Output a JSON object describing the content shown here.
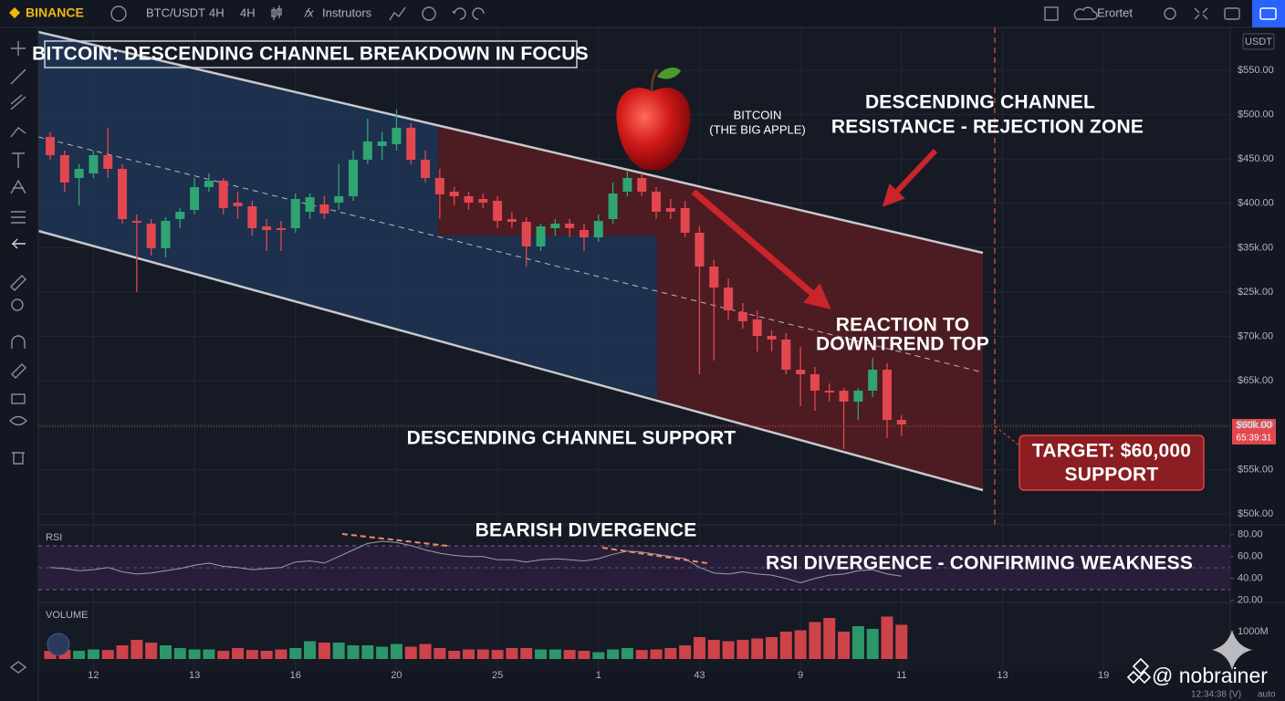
{
  "ui": {
    "logo": "BINANCE",
    "symbol": "BTC/USDT",
    "interval_1": "4H",
    "interval_2": "4H",
    "indicators": "Instrutors",
    "cloud": "Erortet",
    "currency": "USDT",
    "clock": "12:34:38 (V)",
    "scale_mode": "auto",
    "watermark": "@ nobrainer"
  },
  "chart_data": [
    {
      "type": "candlestick",
      "title": "BITCOIN: DESCENDING CHANNEL BREAKDOWN IN FOCUS",
      "annotations": {
        "apple": [
          "BITCOIN",
          "(THE BIG APPLE)"
        ],
        "resistance": [
          "DESCENDING CHANNEL",
          "RESISTANCE - REJECTION ZONE"
        ],
        "reaction": [
          "REACTION TO",
          "DOWNTREND TOP"
        ],
        "support": "DESCENDING CHANNEL SUPPORT",
        "target": [
          "TARGET: $60,000",
          "SUPPORT"
        ]
      },
      "price_labels": [
        "$550.00",
        "$500.00",
        "$450.00",
        "$400.00",
        "$35k.00",
        "$25k.00",
        "$70k.00",
        "$65k.00",
        "$60k.00",
        "$55k.00",
        "$50k.00"
      ],
      "last_price_label": "$60k.00",
      "countdown": "65:39:31",
      "x_labels": [
        "12",
        "13",
        "16",
        "20",
        "25",
        "1",
        "43",
        "9",
        "11",
        "13",
        "19"
      ],
      "ylim": [
        47,
        597
      ],
      "up_color": "#2fa572",
      "down_color": "#e2474f",
      "open": [
        477,
        457,
        432,
        437,
        457,
        442,
        385,
        382,
        355,
        387,
        397,
        422,
        429,
        405,
        401,
        379,
        377,
        377,
        395,
        403,
        405,
        412,
        452,
        467,
        469,
        487,
        452,
        432,
        417,
        412,
        409,
        407,
        387,
        384,
        357,
        377,
        382,
        375,
        367,
        387,
        417,
        432,
        417,
        399,
        399,
        372,
        335,
        312,
        285,
        277,
        259,
        255,
        222,
        217,
        199,
        199,
        187,
        199,
        222,
        167
      ],
      "high": [
        482,
        462,
        447,
        462,
        487,
        447,
        392,
        387,
        389,
        399,
        432,
        437,
        432,
        417,
        407,
        387,
        385,
        415,
        415,
        412,
        447,
        462,
        497,
        482,
        507,
        492,
        462,
        442,
        422,
        417,
        415,
        412,
        395,
        389,
        382,
        387,
        387,
        382,
        392,
        427,
        439,
        437,
        422,
        409,
        407,
        379,
        342,
        322,
        295,
        287,
        265,
        262,
        247,
        225,
        207,
        202,
        202,
        235,
        229,
        172
      ],
      "low": [
        452,
        417,
        402,
        432,
        432,
        382,
        307,
        347,
        345,
        377,
        392,
        417,
        392,
        387,
        369,
        352,
        352,
        372,
        387,
        387,
        397,
        407,
        447,
        452,
        462,
        447,
        427,
        387,
        402,
        397,
        399,
        377,
        377,
        335,
        352,
        369,
        367,
        352,
        362,
        382,
        412,
        412,
        387,
        387,
        367,
        217,
        232,
        277,
        267,
        242,
        242,
        217,
        182,
        177,
        187,
        135,
        167,
        192,
        147,
        149
      ],
      "close": [
        457,
        427,
        442,
        457,
        442,
        387,
        383,
        355,
        385,
        395,
        422,
        429,
        399,
        401,
        377,
        375,
        375,
        409,
        411,
        393,
        412,
        452,
        472,
        472,
        487,
        452,
        432,
        414,
        412,
        405,
        405,
        385,
        384,
        357,
        379,
        382,
        377,
        367,
        385,
        415,
        432,
        417,
        395,
        395,
        372,
        335,
        312,
        287,
        275,
        259,
        255,
        222,
        217,
        199,
        197,
        187,
        199,
        222,
        167,
        162
      ]
    },
    {
      "type": "line",
      "title": "RSI",
      "annotations": {
        "divergence": "BEARISH DIVERGENCE",
        "weakness": "RSI DIVERGENCE - CONFIRMING WEAKNESS"
      },
      "values": [
        50,
        49,
        47,
        48,
        50,
        46,
        44,
        45,
        47,
        49,
        52,
        54,
        51,
        50,
        48,
        49,
        50,
        55,
        56,
        54,
        60,
        66,
        72,
        74,
        73,
        70,
        66,
        63,
        61,
        60,
        60,
        57,
        57,
        55,
        57,
        58,
        57,
        56,
        58,
        62,
        65,
        64,
        62,
        60,
        58,
        50,
        45,
        44,
        46,
        44,
        43,
        40,
        36,
        40,
        43,
        44,
        47,
        48,
        44,
        42
      ],
      "color": "#9aa0ab",
      "ylim": [
        18,
        89
      ],
      "yticks": [
        {
          "value": 80,
          "label": "80.00"
        },
        {
          "value": 60,
          "label": "60.00"
        },
        {
          "value": 40,
          "label": "40.00"
        },
        {
          "value": 20,
          "label": "20.00"
        }
      ]
    },
    {
      "type": "bar",
      "title": "VOLUME",
      "values": [
        300,
        330,
        300,
        350,
        330,
        500,
        700,
        600,
        500,
        400,
        350,
        350,
        300,
        400,
        330,
        300,
        350,
        400,
        650,
        600,
        600,
        500,
        500,
        450,
        550,
        450,
        550,
        400,
        300,
        350,
        350,
        330,
        400,
        400,
        350,
        350,
        330,
        300,
        250,
        350,
        400,
        330,
        350,
        400,
        500,
        800,
        700,
        650,
        700,
        750,
        800,
        1000,
        1050,
        1350,
        1500,
        1000,
        1200,
        1100,
        1550,
        1250
      ],
      "ylim": [
        0,
        1900
      ],
      "yticks": [
        {
          "value": 1000,
          "label": "1000M"
        }
      ]
    }
  ]
}
